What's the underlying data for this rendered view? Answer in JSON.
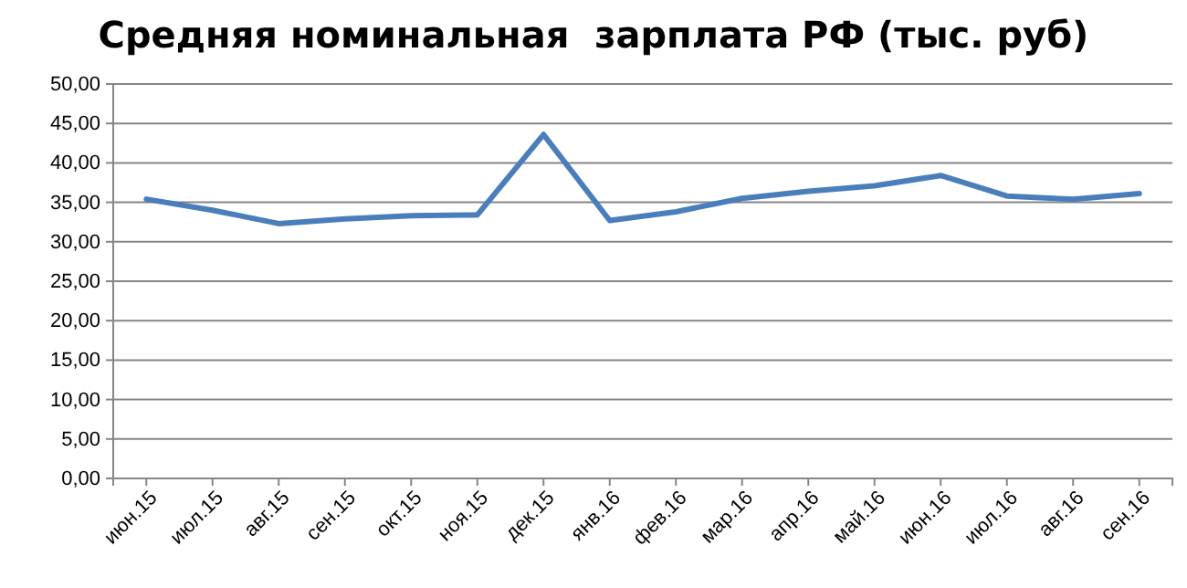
{
  "chart_data": {
    "type": "line",
    "title": "Средняя номинальная  зарплата РФ (тыс. руб)",
    "categories": [
      "июн.15",
      "июл.15",
      "авг.15",
      "сен.15",
      "окт.15",
      "ноя.15",
      "дек.15",
      "янв.16",
      "фев.16",
      "мар.16",
      "апр.16",
      "май.16",
      "июн.16",
      "июл.16",
      "авг.16",
      "сен.16"
    ],
    "series": [
      {
        "color": "#4a7ebb",
        "values": [
          35.4,
          34.0,
          32.3,
          32.9,
          33.3,
          33.4,
          43.6,
          32.7,
          33.8,
          35.5,
          36.4,
          37.1,
          38.4,
          35.8,
          35.4,
          36.1
        ]
      }
    ],
    "ylim": [
      0,
      50
    ],
    "yticks": [
      {
        "value": 0,
        "label": "0,00"
      },
      {
        "value": 5,
        "label": "5,00"
      },
      {
        "value": 10,
        "label": "10,00"
      },
      {
        "value": 15,
        "label": "15,00"
      },
      {
        "value": 20,
        "label": "20,00"
      },
      {
        "value": 25,
        "label": "25,00"
      },
      {
        "value": 30,
        "label": "30,00"
      },
      {
        "value": 35,
        "label": "35,00"
      },
      {
        "value": 40,
        "label": "40,00"
      },
      {
        "value": 45,
        "label": "45,00"
      },
      {
        "value": 50,
        "label": "50,00"
      }
    ],
    "grid": "y",
    "marker": "none",
    "line_style": "solid"
  }
}
